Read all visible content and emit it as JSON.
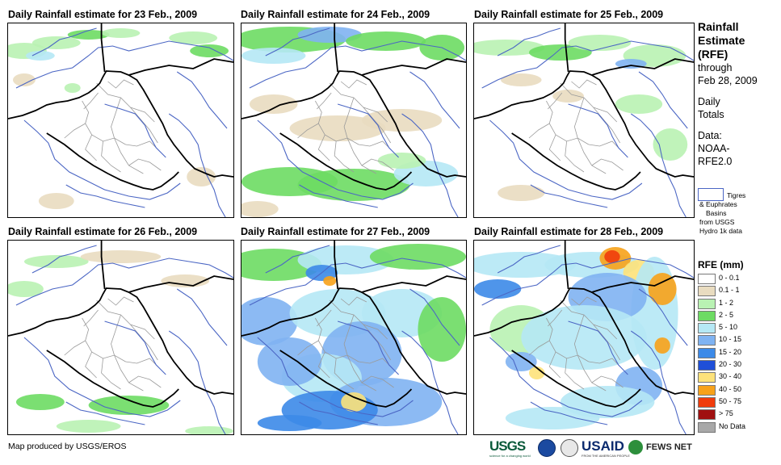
{
  "panels": [
    {
      "title": "Daily Rainfall estimate for 23 Feb., 2009"
    },
    {
      "title": "Daily Rainfall estimate for 24 Feb., 2009"
    },
    {
      "title": "Daily Rainfall estimate for 25 Feb., 2009"
    },
    {
      "title": "Daily Rainfall estimate for 26 Feb., 2009"
    },
    {
      "title": "Daily Rainfall estimate for 27 Feb., 2009"
    },
    {
      "title": "Daily Rainfall estimate for 28 Feb., 2009"
    }
  ],
  "side": {
    "line1": "Rainfall",
    "line2": "Estimate",
    "line3": "(RFE)",
    "line4": "through",
    "line5": "Feb 28, 2009",
    "daily1": "Daily",
    "daily2": "Totals",
    "data1": "Data:",
    "data2": "NOAA-",
    "data3": "RFE2.0"
  },
  "basin_legend": {
    "line1": "Tigres",
    "line2": "& Euphrates",
    "line3": "Basins",
    "line4": "from USGS",
    "line5": "Hydro 1k data"
  },
  "rfe_legend": {
    "title": "RFE (mm)",
    "items": [
      {
        "label": "0 - 0.1",
        "color": "#ffffff"
      },
      {
        "label": "0.1 - 1",
        "color": "#e9dcc0"
      },
      {
        "label": "1 - 2",
        "color": "#b9f2b3"
      },
      {
        "label": "2 - 5",
        "color": "#6ddb63"
      },
      {
        "label": "5 - 10",
        "color": "#b5e8f5"
      },
      {
        "label": "10 - 15",
        "color": "#7fb3f2"
      },
      {
        "label": "15 - 20",
        "color": "#3c8ae8"
      },
      {
        "label": "20 - 30",
        "color": "#1f4fd8"
      },
      {
        "label": "30 - 40",
        "color": "#fde27a"
      },
      {
        "label": "40 - 50",
        "color": "#f7a21a"
      },
      {
        "label": "50 - 75",
        "color": "#f03c0c"
      },
      {
        "label": "> 75",
        "color": "#a01010"
      },
      {
        "label": "No Data",
        "color": "#a8a8a8"
      }
    ]
  },
  "credit": "Map produced by USGS/EROS",
  "logos": {
    "usgs": "USGS",
    "usgs_tag": "science for a changing world",
    "usaid": "USAID",
    "usaid_tag": "FROM THE AMERICAN PEOPLE",
    "fews": "FEWS NET"
  }
}
